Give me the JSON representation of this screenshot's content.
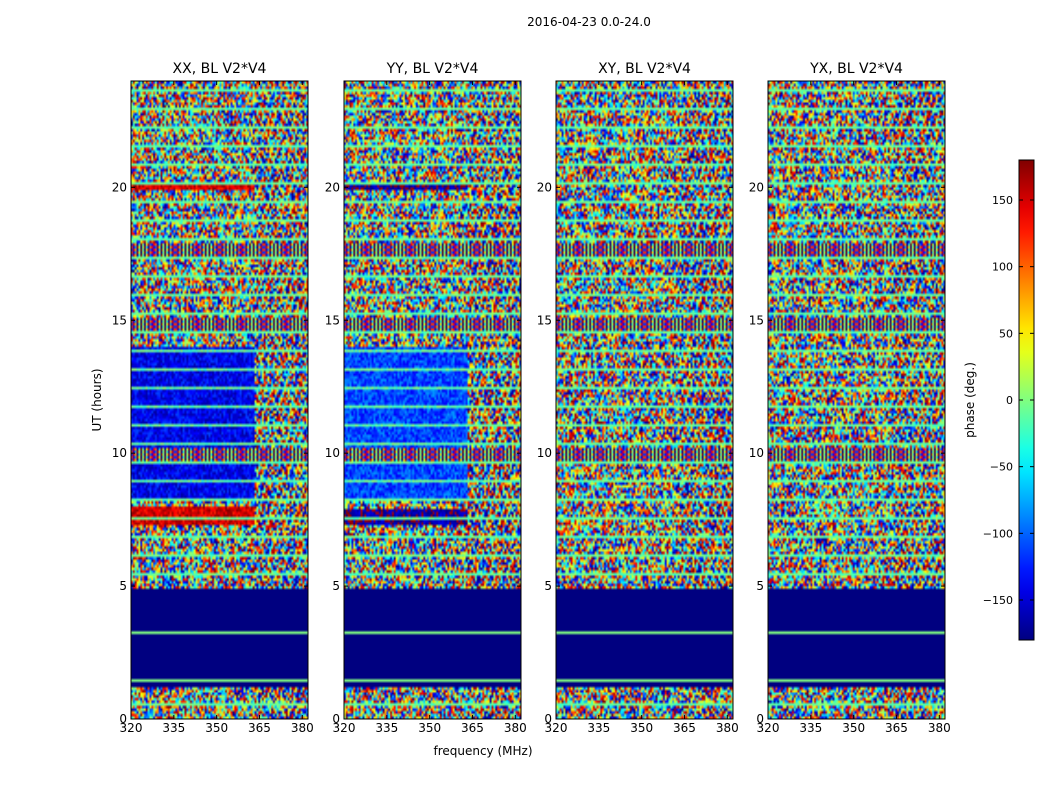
{
  "chart_data": {
    "type": "heatmap",
    "suptitle": "2016-04-23 0.0-24.0",
    "xlabel": "frequency (MHz)",
    "ylabel": "UT (hours)",
    "xlim": [
      320,
      382
    ],
    "ylim": [
      0,
      24
    ],
    "xticks": [
      320,
      335,
      350,
      365,
      380
    ],
    "yticks": [
      0,
      5,
      10,
      15,
      20
    ],
    "colorbar": {
      "label": "phase (deg.)",
      "range": [
        -180,
        180
      ],
      "ticks": [
        -150,
        -100,
        -50,
        0,
        50,
        100,
        150
      ],
      "tick_labels": [
        "−150",
        "−100",
        "−50",
        "0",
        "50",
        "100",
        "150"
      ],
      "colormap": "jet"
    },
    "panels": [
      {
        "title": "XX, BL V2*V4",
        "id": "xx"
      },
      {
        "title": "YY, BL V2*V4",
        "id": "yy"
      },
      {
        "title": "XY, BL V2*V4",
        "id": "xy"
      },
      {
        "title": "YX, BL V2*V4",
        "id": "yx"
      }
    ],
    "features": {
      "flagged_band_ut": [
        1.2,
        4.9
      ],
      "flag_value_deg": -180,
      "coherent_split_mhz": 363,
      "xx_coherent_phase": {
        "low_ut": [
          7.3,
          8.0,
          150
        ],
        "block_ut": [
          8.2,
          14.0,
          -140
        ],
        "top_ut": [
          19.9,
          20.2,
          150
        ]
      },
      "yy_coherent_phase": {
        "low_ut": [
          7.3,
          7.9,
          -170
        ],
        "block_ut": [
          8.2,
          14.0,
          -110
        ],
        "top_ut": [
          19.9,
          20.2,
          -170
        ]
      },
      "fringe_bands_ut": [
        9.9,
        14.8,
        17.6
      ]
    }
  }
}
